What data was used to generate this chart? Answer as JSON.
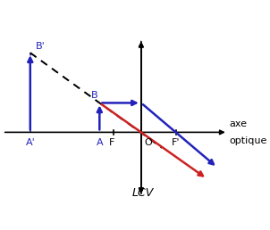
{
  "background_color": "#ffffff",
  "axis_color": "#000000",
  "blue_color": "#2222bb",
  "red_color": "#cc2222",
  "figsize": [
    3.02,
    2.58
  ],
  "dpi": 100,
  "xlim": [
    -4.0,
    2.6
  ],
  "ylim": [
    -2.0,
    3.0
  ],
  "points": {
    "Aprime": -3.2,
    "A": -1.2,
    "F": -0.8,
    "O": 0.0,
    "Fprime": 1.0,
    "B_height": 0.85,
    "Bprime_height": 2.3
  },
  "labels": {
    "axe": "axe",
    "optique": "optique",
    "LCV": "LCV",
    "Bprime": "B'",
    "B": "B",
    "F": "F",
    "Fprime": "F'",
    "Aprime": "A'",
    "A": "A",
    "O": "O"
  }
}
